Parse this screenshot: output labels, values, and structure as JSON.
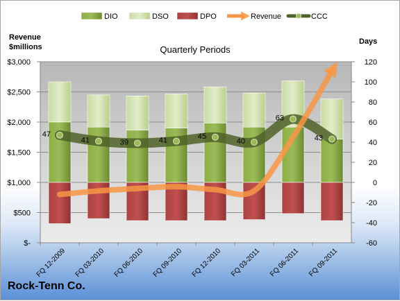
{
  "company": "Rock-Tenn Co.",
  "left_axis_title_line1": "Revenue",
  "left_axis_title_line2": "$millions",
  "right_axis_title": "Days",
  "colors": {
    "dio": "#77933c",
    "dso": "#d7e4bd",
    "dpo": "#953735",
    "revenue": "#f79646",
    "ccc": "#4f6228"
  },
  "chart_data": {
    "type": "bar",
    "title": "Quarterly Periods",
    "categories": [
      "FQ 12-2009",
      "FQ 03-2010",
      "FQ 06-2010",
      "FQ 09-2010",
      "FQ 12-2010",
      "FQ 03-2011",
      "FQ 06-2011",
      "FQ 09-2011"
    ],
    "legend": [
      "DIO",
      "DSO",
      "DPO",
      "Revenue",
      "CCC"
    ],
    "legend_position": "top",
    "grid": true,
    "y_left": {
      "label": "Revenue $millions",
      "range": [
        0,
        3000
      ],
      "ticks": [
        "$-",
        "$500",
        "$1,000",
        "$1,500",
        "$2,000",
        "$2,500",
        "$3,000"
      ]
    },
    "y_right": {
      "label": "Days",
      "range": [
        -60,
        120
      ],
      "ticks": [
        "-60",
        "-40",
        "-20",
        "0",
        "20",
        "40",
        "60",
        "80",
        "100",
        "120"
      ]
    },
    "series": [
      {
        "name": "DIO",
        "type": "stacked-bar",
        "axis": "right",
        "values": [
          60,
          55,
          52,
          54,
          59,
          55,
          55,
          43
        ]
      },
      {
        "name": "DSO",
        "type": "stacked-bar",
        "axis": "right",
        "values": [
          40,
          32,
          34,
          34,
          36,
          34,
          46,
          40
        ]
      },
      {
        "name": "DPO",
        "type": "stacked-bar",
        "axis": "right",
        "values": [
          -41,
          -36,
          -38,
          -38,
          -38,
          -37,
          -31,
          -38
        ]
      },
      {
        "name": "Revenue",
        "type": "line",
        "axis": "left",
        "values": [
          800,
          860,
          900,
          930,
          880,
          860,
          1750,
          2850
        ]
      },
      {
        "name": "CCC",
        "type": "line",
        "axis": "right",
        "values": [
          47,
          41,
          39,
          41,
          45,
          40,
          63,
          43
        ],
        "labels": [
          "47",
          "41",
          "39",
          "41",
          "45",
          "40",
          "63",
          "43"
        ]
      }
    ]
  }
}
